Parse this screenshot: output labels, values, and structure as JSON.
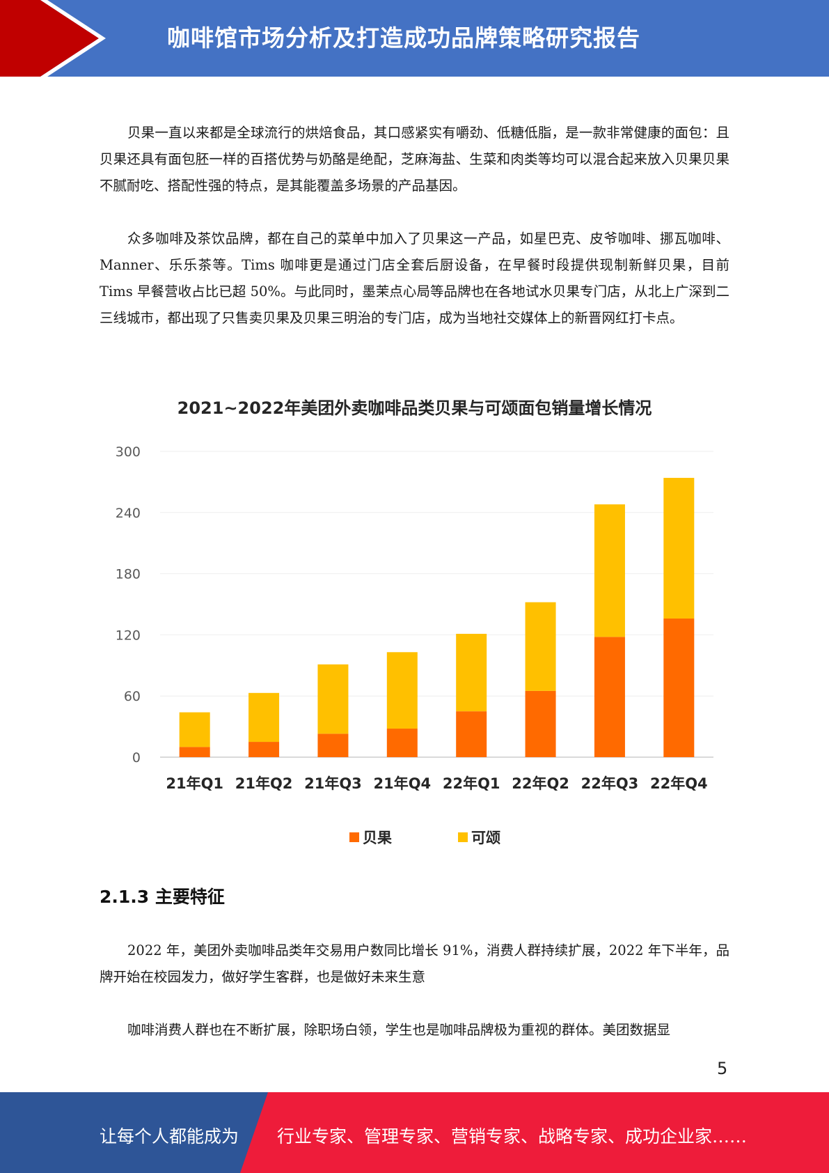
{
  "header": {
    "title": "咖啡馆市场分析及打造成功品牌策略研究报告"
  },
  "paragraphs": [
    "贝果一直以来都是全球流行的烘焙食品，其口感紧实有嚼劲、低糖低脂，是一款非常健康的面包：且贝果还具有面包胚一样的百搭优势与奶酪是绝配，芝麻海盐、生菜和肉类等均可以混合起来放入贝果贝果不腻耐吃、搭配性强的特点，是其能覆盖多场景的产品基因。",
    "众多咖啡及茶饮品牌，都在自己的菜单中加入了贝果这一产品，如星巴克、皮爷咖啡、挪瓦咖啡、Manner、乐乐茶等。Tims 咖啡更是通过门店全套后厨设备，在早餐时段提供现制新鲜贝果，目前 Tims 早餐营收占比已超 50%。与此同时，墨茉点心局等品牌也在各地试水贝果专门店，从北上广深到二三线城市，都出现了只售卖贝果及贝果三明治的专门店，成为当地社交媒体上的新晋网红打卡点。"
  ],
  "chart_data": {
    "type": "bar",
    "stacked": true,
    "title": "2021~2022年美团外卖咖啡品类贝果与可颂面包销量增长情况",
    "categories": [
      "21年Q1",
      "21年Q2",
      "21年Q3",
      "21年Q4",
      "22年Q1",
      "22年Q2",
      "22年Q3",
      "22年Q4"
    ],
    "series": [
      {
        "name": "贝果",
        "color": "#FF6A00",
        "values": [
          10,
          15,
          23,
          28,
          45,
          65,
          118,
          136
        ]
      },
      {
        "name": "可颂",
        "color": "#FFC000",
        "values": [
          34,
          48,
          68,
          75,
          76,
          87,
          130,
          138
        ]
      }
    ],
    "yticks": [
      0,
      60,
      120,
      180,
      240,
      300
    ],
    "ylim": [
      0,
      300
    ],
    "grid": true,
    "legend_position": "bottom"
  },
  "section": {
    "heading": "2.1.3  主要特征",
    "paragraphs": [
      "2022 年，美团外卖咖啡品类年交易用户数同比增长 91%，消费人群持续扩展，2022 年下半年，品牌开始在校园发力，做好学生客群，也是做好未来生意",
      "咖啡消费人群也在不断扩展，除职场白领，学生也是咖啡品牌极为重视的群体。美团数据显"
    ]
  },
  "page_number": "5",
  "footer": {
    "left_text": "让每个人都能成为",
    "right_text": "行业专家、管理专家、营销专家、战略专家、成功企业家……",
    "colors": {
      "blue": "#2E5597",
      "red": "#EE1C3A"
    }
  },
  "colors": {
    "header_blue": "#4472C4",
    "header_red": "#C00000"
  }
}
